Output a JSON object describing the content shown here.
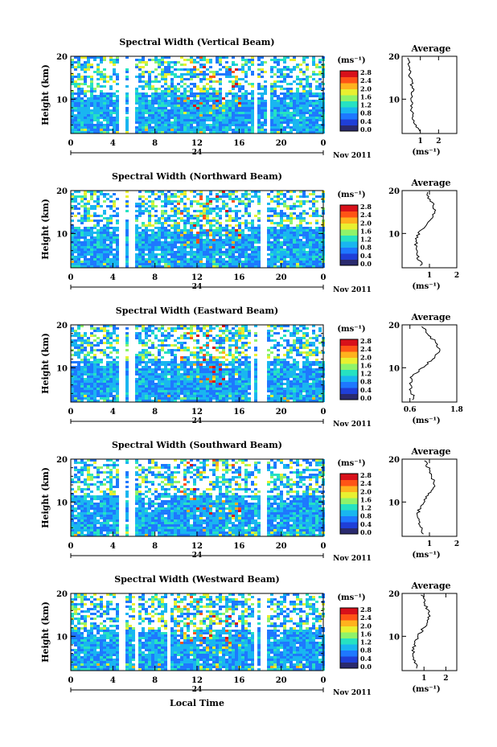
{
  "figure": {
    "xlabel_bottom": "Local Time",
    "date_label": "Nov 2011",
    "day_label": "24",
    "colorbar_unit": "(ms⁻¹)",
    "colorbar_ticks": [
      "0.0",
      "0.4",
      "0.8",
      "1.2",
      "1.6",
      "2.0",
      "2.4",
      "2.8"
    ],
    "colorbar_colors": [
      "#2a2a6e",
      "#1f3fd8",
      "#1e78ff",
      "#19b6f0",
      "#26e2c2",
      "#8ff36a",
      "#e9f030",
      "#ffb21e",
      "#ff5416",
      "#d8101a"
    ],
    "average_title": "Average",
    "average_xlabel": "(ms⁻¹)"
  },
  "chart_data": [
    {
      "type": "heatmap",
      "title": "Spectral Width (Vertical Beam)",
      "ylabel": "Height (km)",
      "x_ticks": [
        "0",
        "4",
        "8",
        "12",
        "16",
        "20",
        "0"
      ],
      "y_ticks": [
        "10",
        "20"
      ],
      "xlim": [
        0,
        24
      ],
      "ylim": [
        2,
        20
      ],
      "data_gaps_hours": [
        [
          4.5,
          4.9
        ],
        [
          5.3,
          5.9
        ],
        [
          17.2,
          17.6
        ],
        [
          18.5,
          18.9
        ]
      ],
      "color_range": [
        0.0,
        2.8
      ],
      "average": {
        "x_ticks": [
          "1",
          "2"
        ],
        "xlim": [
          0,
          3
        ],
        "profile": {
          "heights": [
            3,
            4,
            6,
            8,
            10,
            12,
            14,
            16,
            18,
            20
          ],
          "values": [
            0.9,
            0.7,
            0.6,
            0.5,
            0.5,
            0.6,
            0.5,
            0.4,
            0.4,
            0.3
          ]
        }
      }
    },
    {
      "type": "heatmap",
      "title": "Spectral Width (Northward Beam)",
      "ylabel": "Height (km)",
      "x_ticks": [
        "0",
        "4",
        "8",
        "12",
        "16",
        "20",
        "0"
      ],
      "y_ticks": [
        "10",
        "20"
      ],
      "xlim": [
        0,
        24
      ],
      "ylim": [
        2,
        20
      ],
      "data_gaps_hours": [
        [
          4.5,
          4.9
        ],
        [
          5.3,
          5.9
        ],
        [
          17.9,
          18.5
        ]
      ],
      "color_range": [
        0.0,
        2.8
      ],
      "average": {
        "x_ticks": [
          "1",
          "2"
        ],
        "xlim": [
          0,
          2
        ],
        "profile": {
          "heights": [
            3,
            4,
            6,
            8,
            10,
            12,
            14,
            16,
            18,
            20
          ],
          "values": [
            0.7,
            0.6,
            0.5,
            0.5,
            0.6,
            0.9,
            1.1,
            1.2,
            1.0,
            0.9
          ]
        }
      }
    },
    {
      "type": "heatmap",
      "title": "Spectral Width (Eastward Beam)",
      "ylabel": "Height (km)",
      "x_ticks": [
        "0",
        "4",
        "8",
        "12",
        "16",
        "20",
        "0"
      ],
      "y_ticks": [
        "10",
        "20"
      ],
      "xlim": [
        0,
        24
      ],
      "ylim": [
        2,
        20
      ],
      "data_gaps_hours": [
        [
          4.5,
          4.9
        ],
        [
          5.3,
          5.9
        ],
        [
          17.0,
          17.3
        ],
        [
          17.7,
          18.4
        ]
      ],
      "color_range": [
        0.0,
        2.8
      ],
      "average": {
        "x_ticks": [
          "0.6",
          "1.8"
        ],
        "xlim": [
          0.4,
          1.8
        ],
        "profile": {
          "heights": [
            3,
            4,
            6,
            8,
            10,
            12,
            14,
            16,
            18,
            20
          ],
          "values": [
            0.7,
            0.65,
            0.6,
            0.65,
            0.9,
            1.2,
            1.35,
            1.25,
            1.05,
            0.9
          ]
        }
      }
    },
    {
      "type": "heatmap",
      "title": "Spectral Width (Southward Beam)",
      "ylabel": "Height (km)",
      "x_ticks": [
        "0",
        "4",
        "8",
        "12",
        "16",
        "20",
        "0"
      ],
      "y_ticks": [
        "10",
        "20"
      ],
      "xlim": [
        0,
        24
      ],
      "ylim": [
        2,
        20
      ],
      "data_gaps_hours": [
        [
          4.5,
          4.9
        ],
        [
          5.3,
          5.9
        ],
        [
          17.9,
          18.5
        ]
      ],
      "color_range": [
        0.0,
        2.8
      ],
      "average": {
        "x_ticks": [
          "1",
          "2"
        ],
        "xlim": [
          0,
          2
        ],
        "profile": {
          "heights": [
            3,
            4,
            6,
            8,
            10,
            12,
            14,
            16,
            18,
            20
          ],
          "values": [
            0.75,
            0.7,
            0.6,
            0.6,
            0.75,
            1.0,
            1.2,
            1.1,
            0.95,
            0.85
          ]
        }
      }
    },
    {
      "type": "heatmap",
      "title": "Spectral Width (Westward Beam)",
      "ylabel": "Height (km)",
      "x_ticks": [
        "0",
        "4",
        "8",
        "12",
        "16",
        "20",
        "0"
      ],
      "y_ticks": [
        "10",
        "20"
      ],
      "xlim": [
        0,
        24
      ],
      "ylim": [
        2,
        20
      ],
      "data_gaps_hours": [
        [
          4.5,
          4.9
        ],
        [
          6.0,
          6.3
        ],
        [
          9.0,
          9.3
        ],
        [
          17.3,
          17.6
        ],
        [
          17.9,
          18.5
        ]
      ],
      "color_range": [
        0.0,
        2.8
      ],
      "average": {
        "x_ticks": [
          "1",
          "2"
        ],
        "xlim": [
          0,
          2.5
        ],
        "profile": {
          "heights": [
            3,
            4,
            6,
            8,
            10,
            12,
            14,
            16,
            18,
            20
          ],
          "values": [
            0.7,
            0.6,
            0.5,
            0.55,
            0.7,
            1.0,
            1.25,
            1.2,
            1.0,
            0.9
          ]
        }
      }
    }
  ]
}
